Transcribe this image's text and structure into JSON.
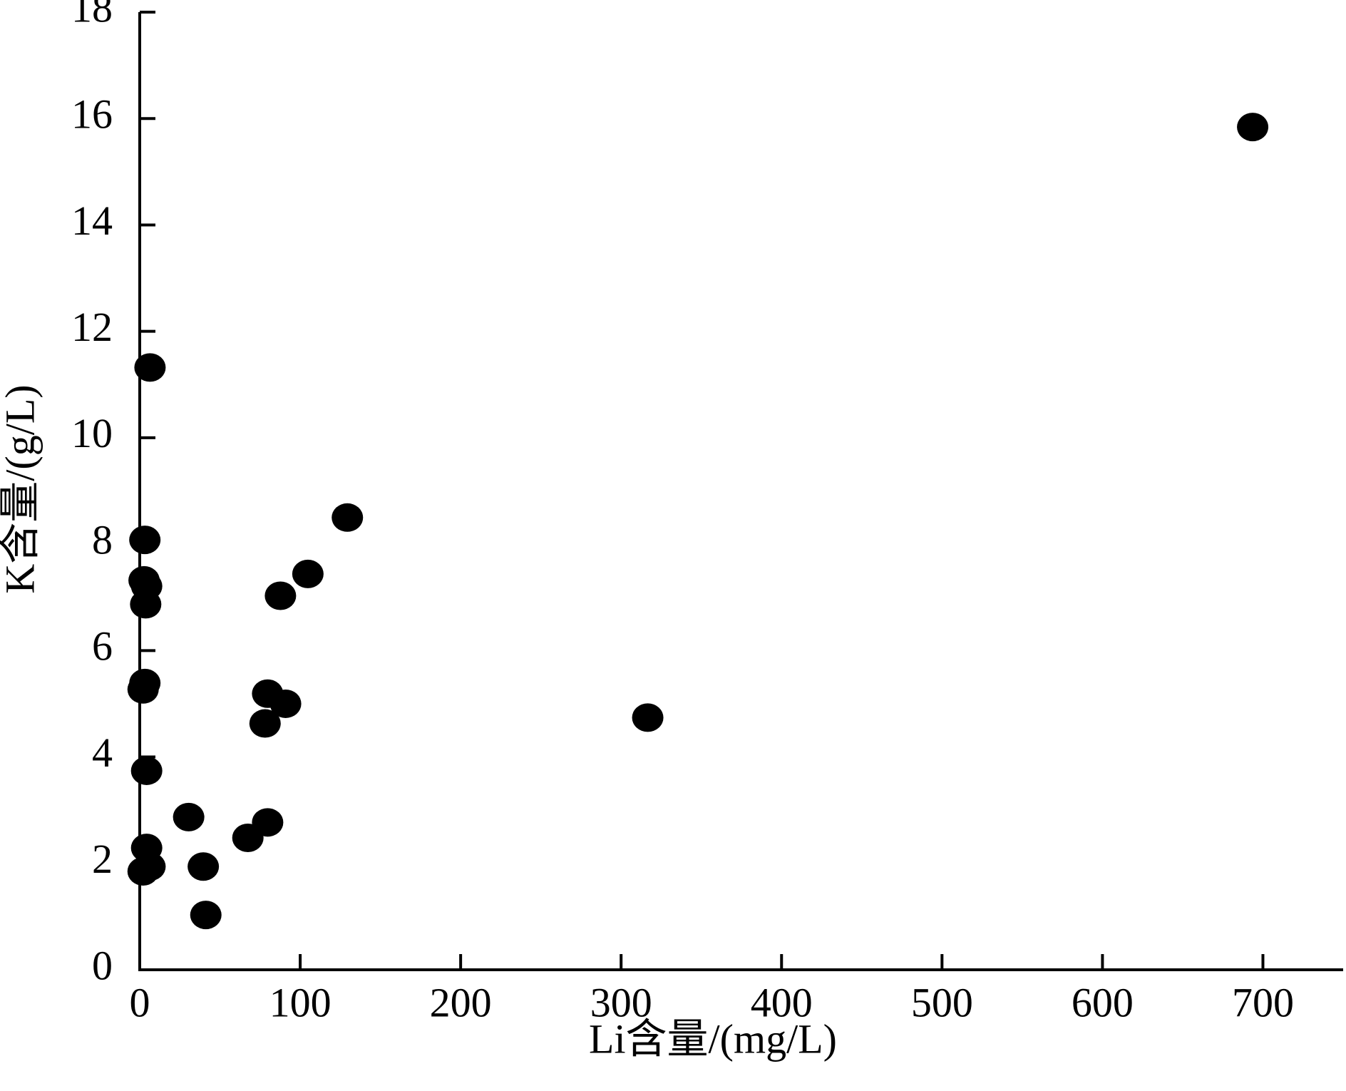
{
  "chart_data": {
    "type": "scatter",
    "x_label": "Li含量/(mg/L)",
    "y_label": "K含量/(g/L)",
    "color": "#000000",
    "xlim": [
      0,
      750
    ],
    "xticks": [
      0,
      100,
      200,
      300,
      400,
      500,
      600,
      700
    ],
    "ylim": [
      0,
      18
    ],
    "yticks": [
      0,
      2,
      4,
      6,
      8,
      10,
      12,
      14,
      16,
      18
    ],
    "series": [
      {
        "x": [
          693.6,
          6.4,
          129.4,
          3.2,
          104.8,
          87.7,
          2.7,
          4.3,
          3.7,
          3.2,
          2.1,
          79.7,
          90.9,
          78.1,
          316.6,
          4.3,
          30.5,
          79.7,
          67.4,
          4.3,
          39.6,
          6.4,
          2.1,
          41.2
        ],
        "values": [
          15.84,
          11.32,
          8.5,
          8.08,
          7.44,
          7.03,
          7.32,
          7.21,
          6.87,
          5.39,
          5.27,
          5.19,
          5.0,
          4.63,
          4.74,
          3.74,
          2.87,
          2.77,
          2.48,
          2.29,
          1.94,
          1.94,
          1.85,
          1.03
        ]
      }
    ]
  }
}
